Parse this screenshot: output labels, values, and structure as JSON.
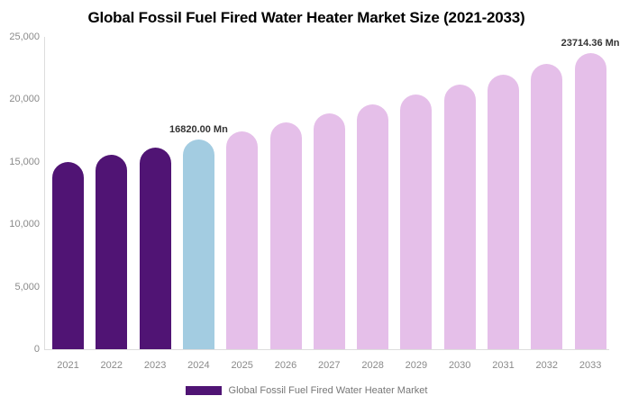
{
  "title": "Global Fossil Fuel Fired Water Heater Market Size (2021-2033)",
  "colors": {
    "historical_bar": "#501474",
    "current_bar": "#A3CCE1",
    "forecast_bar": "#E5BFE9",
    "axis_line": "#dddddd",
    "axis_text": "#8a8a8a",
    "value_label_text": "#333333",
    "legend_text": "#777777"
  },
  "legend": {
    "items": [
      {
        "label": "Global Fossil Fuel Fired Water Heater Market",
        "color": "#501474"
      }
    ]
  },
  "chart_data": {
    "type": "bar",
    "title": "Global Fossil Fuel Fired Water Heater Market Size (2021-2033)",
    "categories": [
      "2021",
      "2022",
      "2023",
      "2024",
      "2025",
      "2026",
      "2027",
      "2028",
      "2029",
      "2030",
      "2031",
      "2032",
      "2033"
    ],
    "values": [
      14950,
      15550,
      16170,
      16820,
      17470,
      18150,
      18860,
      19590,
      20360,
      21150,
      21970,
      22830,
      23714.36
    ],
    "bar_roles": [
      "historical",
      "historical",
      "historical",
      "current",
      "forecast",
      "forecast",
      "forecast",
      "forecast",
      "forecast",
      "forecast",
      "forecast",
      "forecast",
      "forecast"
    ],
    "point_labels": [
      "",
      "",
      "",
      "16820.00 Mn",
      "",
      "",
      "",
      "",
      "",
      "",
      "",
      "",
      "23714.36 Mn"
    ],
    "unit": "Mn",
    "xlabel": "",
    "ylabel": "",
    "ylim": [
      0,
      25000
    ],
    "ytick_labels": [
      "0",
      "5,000",
      "10,000",
      "15,000",
      "20,000",
      "25,000"
    ],
    "grid": false,
    "legend_position": "bottom"
  }
}
